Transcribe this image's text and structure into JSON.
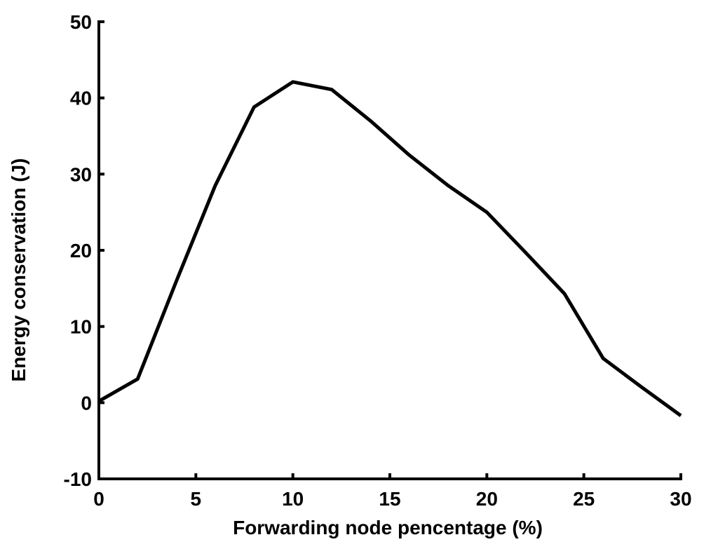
{
  "chart_data": {
    "type": "line",
    "xlabel": "Forwarding node pencentage (%)",
    "ylabel": "Energy conservation (J)",
    "xlim": [
      0,
      30
    ],
    "ylim": [
      -10,
      50
    ],
    "x_ticks": [
      0,
      5,
      10,
      15,
      20,
      25,
      30
    ],
    "y_ticks": [
      -10,
      0,
      10,
      20,
      30,
      40,
      50
    ],
    "x_tick_labels": [
      "0",
      "5",
      "10",
      "15",
      "20",
      "25",
      "30"
    ],
    "y_tick_labels": [
      "-10",
      "0",
      "10",
      "20",
      "30",
      "40",
      "50"
    ],
    "grid": false,
    "line_color": "#000000",
    "series": [
      {
        "x": [
          0,
          2,
          4,
          6,
          8,
          10,
          12,
          14,
          16,
          18,
          20,
          22,
          24,
          26,
          28,
          30
        ],
        "values": [
          0.2,
          3.1,
          16,
          28.5,
          38.8,
          42.1,
          41.1,
          37,
          32.5,
          28.5,
          25,
          19.7,
          14.3,
          5.8,
          2,
          -1.7
        ]
      }
    ]
  }
}
